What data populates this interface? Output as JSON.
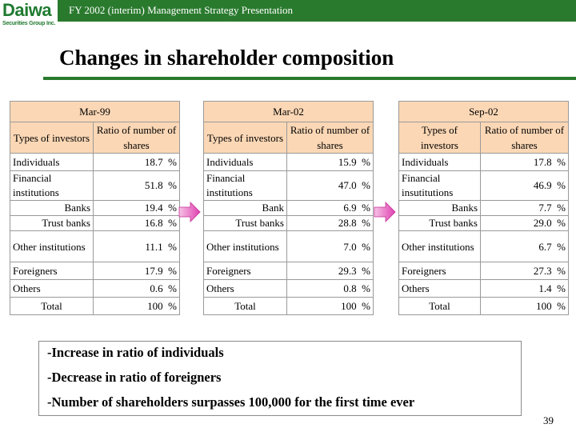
{
  "logo": {
    "name": "Daiwa",
    "sub": "Securities Group Inc."
  },
  "header": {
    "text": "FY 2002 (interim) Management Strategy Presentation"
  },
  "title": "Changes in shareholder composition",
  "colors": {
    "brand_green": "#2a7a2e",
    "header_fill": "#fbd7b5",
    "arrow_pink": "#e040b0"
  },
  "tables": [
    {
      "period": "Mar-99",
      "col1": "Types of investors",
      "col2": "Ratio of number of shares",
      "rows": {
        "individuals": {
          "label": "Individuals",
          "value": "18.7",
          "unit": "%"
        },
        "financial": {
          "label": "Financial institutions",
          "value": "51.8",
          "unit": "%"
        },
        "banks": {
          "label": "Banks",
          "value": "19.4",
          "unit": "%"
        },
        "trust": {
          "label": "Trust banks",
          "value": "16.8",
          "unit": "%"
        },
        "other": {
          "label": "Other institutions",
          "value": "11.1",
          "unit": "%"
        },
        "foreigners": {
          "label": "Foreigners",
          "value": "17.9",
          "unit": "%"
        },
        "others": {
          "label": "Others",
          "value": "0.6",
          "unit": "%"
        },
        "total": {
          "label": "Total",
          "value": "100",
          "unit": "%"
        }
      }
    },
    {
      "period": "Mar-02",
      "col1": "Types of investors",
      "col2": "Ratio of number of shares",
      "rows": {
        "individuals": {
          "label": "Individuals",
          "value": "15.9",
          "unit": "%"
        },
        "financial": {
          "label": "Financial institutions",
          "value": "47.0",
          "unit": "%"
        },
        "banks": {
          "label": "Bank",
          "value": "6.9",
          "unit": "%"
        },
        "trust": {
          "label": "Trust banks",
          "value": "28.8",
          "unit": "%"
        },
        "other": {
          "label": "Other institutions",
          "value": "7.0",
          "unit": "%"
        },
        "foreigners": {
          "label": "Foreigners",
          "value": "29.3",
          "unit": "%"
        },
        "others": {
          "label": "Others",
          "value": "0.8",
          "unit": "%"
        },
        "total": {
          "label": "Total",
          "value": "100",
          "unit": "%"
        }
      }
    },
    {
      "period": "Sep-02",
      "col1": "Types of investors",
      "col2": "Ratio of number of shares",
      "rows": {
        "individuals": {
          "label": "Individuals",
          "value": "17.8",
          "unit": "%"
        },
        "financial": {
          "label": "Financial insutitutions",
          "value": "46.9",
          "unit": "%"
        },
        "banks": {
          "label": "Banks",
          "value": "7.7",
          "unit": "%"
        },
        "trust": {
          "label": "Trust banks",
          "value": "29.0",
          "unit": "%"
        },
        "other": {
          "label": "Other institutions",
          "value": "6.7",
          "unit": "%"
        },
        "foreigners": {
          "label": "Foreigners",
          "value": "27.3",
          "unit": "%"
        },
        "others": {
          "label": "Others",
          "value": "1.4",
          "unit": "%"
        },
        "total": {
          "label": "Total",
          "value": "100",
          "unit": "%"
        }
      }
    }
  ],
  "bullets": [
    "-Increase in ratio of individuals",
    "-Decrease in ratio of foreigners",
    "-Number of shareholders surpasses 100,000 for the first time ever"
  ],
  "page_number": "39"
}
